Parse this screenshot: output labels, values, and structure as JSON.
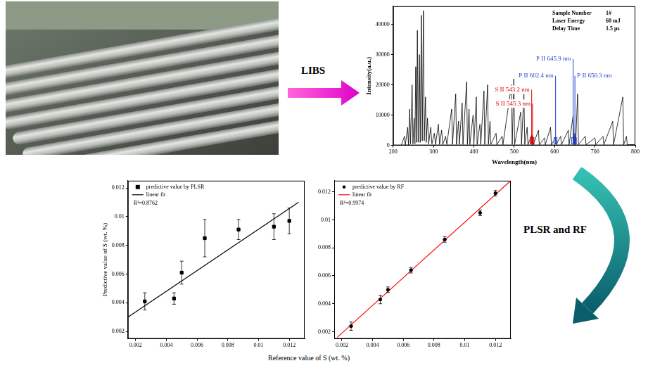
{
  "arrows": {
    "libs": "LIBS",
    "models": "PLSR and RF"
  },
  "shared_x_label": "Reference value of S (wt. %)",
  "chart_data": [
    {
      "type": "line",
      "x_label": "Wavelength(nm)",
      "y_label": "Intensity(a.u.)",
      "xlim": [
        200,
        800
      ],
      "xticks": [
        200,
        300,
        400,
        500,
        600,
        700,
        800
      ],
      "ylim": [
        0,
        46000
      ],
      "yticks": [
        0,
        10000,
        20000,
        30000,
        40000
      ],
      "grid": false,
      "series": [
        {
          "color": "#000000",
          "x": [
            220,
            228,
            230,
            236,
            238,
            241,
            243,
            247,
            249,
            252,
            254,
            256,
            258,
            260,
            262,
            265,
            267,
            270,
            272,
            275,
            277,
            280,
            282,
            285,
            288,
            293,
            296,
            302,
            305,
            312,
            315,
            320,
            323,
            330,
            333,
            345,
            347,
            355,
            357,
            362,
            364,
            371,
            373,
            382,
            384,
            388,
            390,
            398,
            400,
            406,
            408,
            415,
            417,
            425,
            427,
            434,
            436,
            440,
            442,
            455,
            457,
            470,
            472,
            493,
            495,
            499,
            501,
            516,
            518,
            524,
            526,
            532,
            534,
            543.2,
            544.2,
            545.3,
            547,
            560,
            562,
            575,
            577,
            590,
            592,
            602.4,
            604,
            615,
            617,
            634,
            636,
            645.9,
            648,
            650.3,
            652,
            657,
            659,
            676,
            678,
            700,
            702,
            720,
            722,
            744,
            746,
            769,
            771,
            778,
            780,
            800
          ],
          "values": [
            0,
            3000,
            0,
            6000,
            0,
            12000,
            500,
            20000,
            500,
            9000,
            500,
            26000,
            1000,
            38000,
            1000,
            30000,
            1000,
            43000,
            1500,
            44500,
            1500,
            16000,
            1000,
            9000,
            500,
            6000,
            500,
            4000,
            300,
            7000,
            300,
            5000,
            300,
            3000,
            300,
            12000,
            300,
            17000,
            300,
            8000,
            300,
            14000,
            300,
            21000,
            300,
            12000,
            300,
            10000,
            300,
            16000,
            300,
            7000,
            300,
            18000,
            300,
            20000,
            300,
            8000,
            300,
            4000,
            200,
            3000,
            200,
            20000,
            300,
            22000,
            300,
            11000,
            300,
            17000,
            300,
            6000,
            200,
            3500,
            300,
            3000,
            200,
            5000,
            200,
            2500,
            200,
            6000,
            200,
            2500,
            200,
            3000,
            200,
            5000,
            200,
            10000,
            200,
            4000,
            200,
            17000,
            200,
            3000,
            200,
            2500,
            200,
            3000,
            200,
            8000,
            200,
            16000,
            200,
            3000,
            200,
            300
          ]
        }
      ],
      "annotations": [
        {
          "text": "S II 543.2 nm",
          "x": 543.2,
          "color": "#e00000"
        },
        {
          "text": "S II 545.3 nm",
          "x": 545.3,
          "color": "#e00000"
        },
        {
          "text": "P II 602.4 nm",
          "x": 602.4,
          "color": "#1f3fd0"
        },
        {
          "text": "P II 645.9 nm",
          "x": 645.9,
          "color": "#1f3fd0"
        },
        {
          "text": "P II 650.3 nm",
          "x": 650.3,
          "color": "#1f3fd0"
        }
      ],
      "info": [
        {
          "label": "Sample Number",
          "value": "1#"
        },
        {
          "label": "Laser Energy",
          "value": "60 mJ"
        },
        {
          "label": "Delay Time",
          "value": "1.5 μs"
        }
      ]
    },
    {
      "type": "scatter",
      "y_label": "Predictive value of S (wt. %)",
      "xlim": [
        0.0015,
        0.013
      ],
      "xticks": [
        0.002,
        0.004,
        0.006,
        0.008,
        0.01,
        0.012
      ],
      "ylim": [
        0.0015,
        0.0125
      ],
      "yticks": [
        0.002,
        0.004,
        0.006,
        0.008,
        0.01,
        0.012
      ],
      "grid": false,
      "legend": "upper left",
      "series": [
        {
          "name": "predictive value by PLSR",
          "color": "#000000",
          "marker": "square",
          "x": [
            0.0026,
            0.0045,
            0.005,
            0.0065,
            0.0087,
            0.011,
            0.012
          ],
          "values": [
            0.0041,
            0.0043,
            0.0061,
            0.0085,
            0.0091,
            0.0093,
            0.0097
          ],
          "errors": [
            0.0006,
            0.0004,
            0.0008,
            0.0013,
            0.0007,
            0.0009,
            0.0009
          ]
        },
        {
          "name": "linear fit",
          "type": "line",
          "color": "#000000",
          "line_style": "solid",
          "x": [
            0.0015,
            0.0126
          ],
          "values": [
            0.003,
            0.011
          ]
        }
      ],
      "annotations": [
        {
          "text": "R²=0.8762"
        }
      ]
    },
    {
      "type": "scatter",
      "xlim": [
        0.0015,
        0.013
      ],
      "xticks": [
        0.002,
        0.004,
        0.006,
        0.008,
        0.01,
        0.012
      ],
      "ylim": [
        0.0015,
        0.0128
      ],
      "yticks": [
        0.002,
        0.004,
        0.006,
        0.008,
        0.01,
        0.012
      ],
      "grid": false,
      "legend": "upper left",
      "series": [
        {
          "name": "predictive value by RF",
          "color": "#000000",
          "marker": "circle",
          "x": [
            0.0026,
            0.0045,
            0.005,
            0.0065,
            0.0087,
            0.011,
            0.012
          ],
          "values": [
            0.0024,
            0.0043,
            0.005,
            0.0064,
            0.0086,
            0.0105,
            0.0119
          ],
          "errors": [
            0.0003,
            0.0003,
            0.0002,
            0.0002,
            0.0002,
            0.0002,
            0.0002
          ]
        },
        {
          "name": "linear fit",
          "type": "line",
          "color": "#ff0000",
          "line_style": "solid",
          "x": [
            0.0017,
            0.013
          ],
          "values": [
            0.0016,
            0.0128
          ]
        }
      ],
      "annotations": [
        {
          "text": "R²=0.9974"
        }
      ]
    }
  ]
}
